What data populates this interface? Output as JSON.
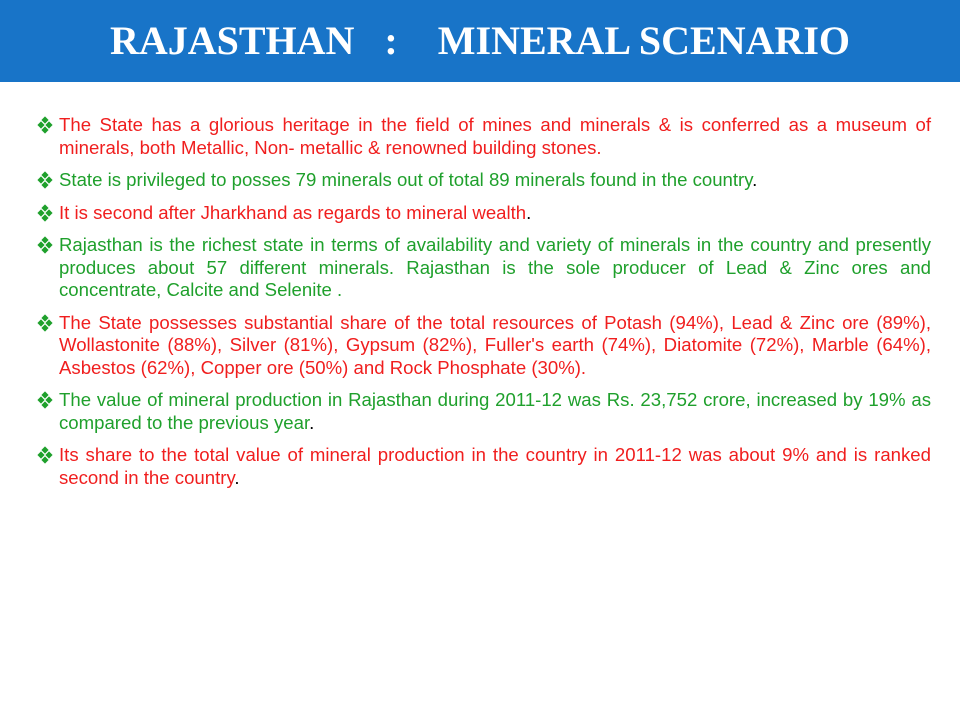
{
  "header": {
    "title": "RAJASTHAN   :    MINERAL SCENARIO"
  },
  "colors": {
    "title_bar": "#1874c8",
    "title_text": "#ffffff",
    "bullet_red": "#f01e1e",
    "bullet_green": "#1fa02c",
    "marker": "#1fa02c"
  },
  "bullets": [
    {
      "icon": "diamond-bullet-icon",
      "color": "red",
      "text": "The State has a glorious heritage in the field of mines and minerals & is conferred as a museum of minerals, both  Metallic,  Non- metallic & renowned building stones.",
      "end": ""
    },
    {
      "icon": "diamond-bullet-icon",
      "color": "green",
      "text": "State is privileged to posses 79 minerals out of total 89 minerals found in the country",
      "end": "."
    },
    {
      "icon": "diamond-bullet-icon",
      "color": "red",
      "text": "It is second after Jharkhand as regards to mineral wealth",
      "end": "."
    },
    {
      "icon": "diamond-bullet-icon",
      "color": "green",
      "text": "Rajasthan is the richest state in terms of availability and variety of minerals in the country and presently produces about 57 different minerals. Rajasthan is the sole producer of Lead & Zinc ores and concentrate, Calcite and Selenite .",
      "end": ""
    },
    {
      "icon": "diamond-bullet-icon",
      "color": "red",
      "text": "The State possesses substantial share of the total resources of Potash (94%), Lead & Zinc ore (89%), Wollastonite (88%), Silver (81%), Gypsum (82%), Fuller's earth (74%), Diatomite (72%), Marble (64%), Asbestos (62%), Copper ore (50%) and Rock Phosphate (30%).",
      "end": ""
    },
    {
      "icon": "diamond-bullet-icon",
      "color": "green",
      "text": "The value of mineral production in Rajasthan during 2011-12 was Rs. 23,752 crore, increased by 19% as compared to the previous year",
      "end": "."
    },
    {
      "icon": "diamond-bullet-icon",
      "color": "red",
      "text": "Its share to the total value of mineral production in the country in 2011-12 was about 9% and is ranked second in the country",
      "end": "."
    }
  ]
}
